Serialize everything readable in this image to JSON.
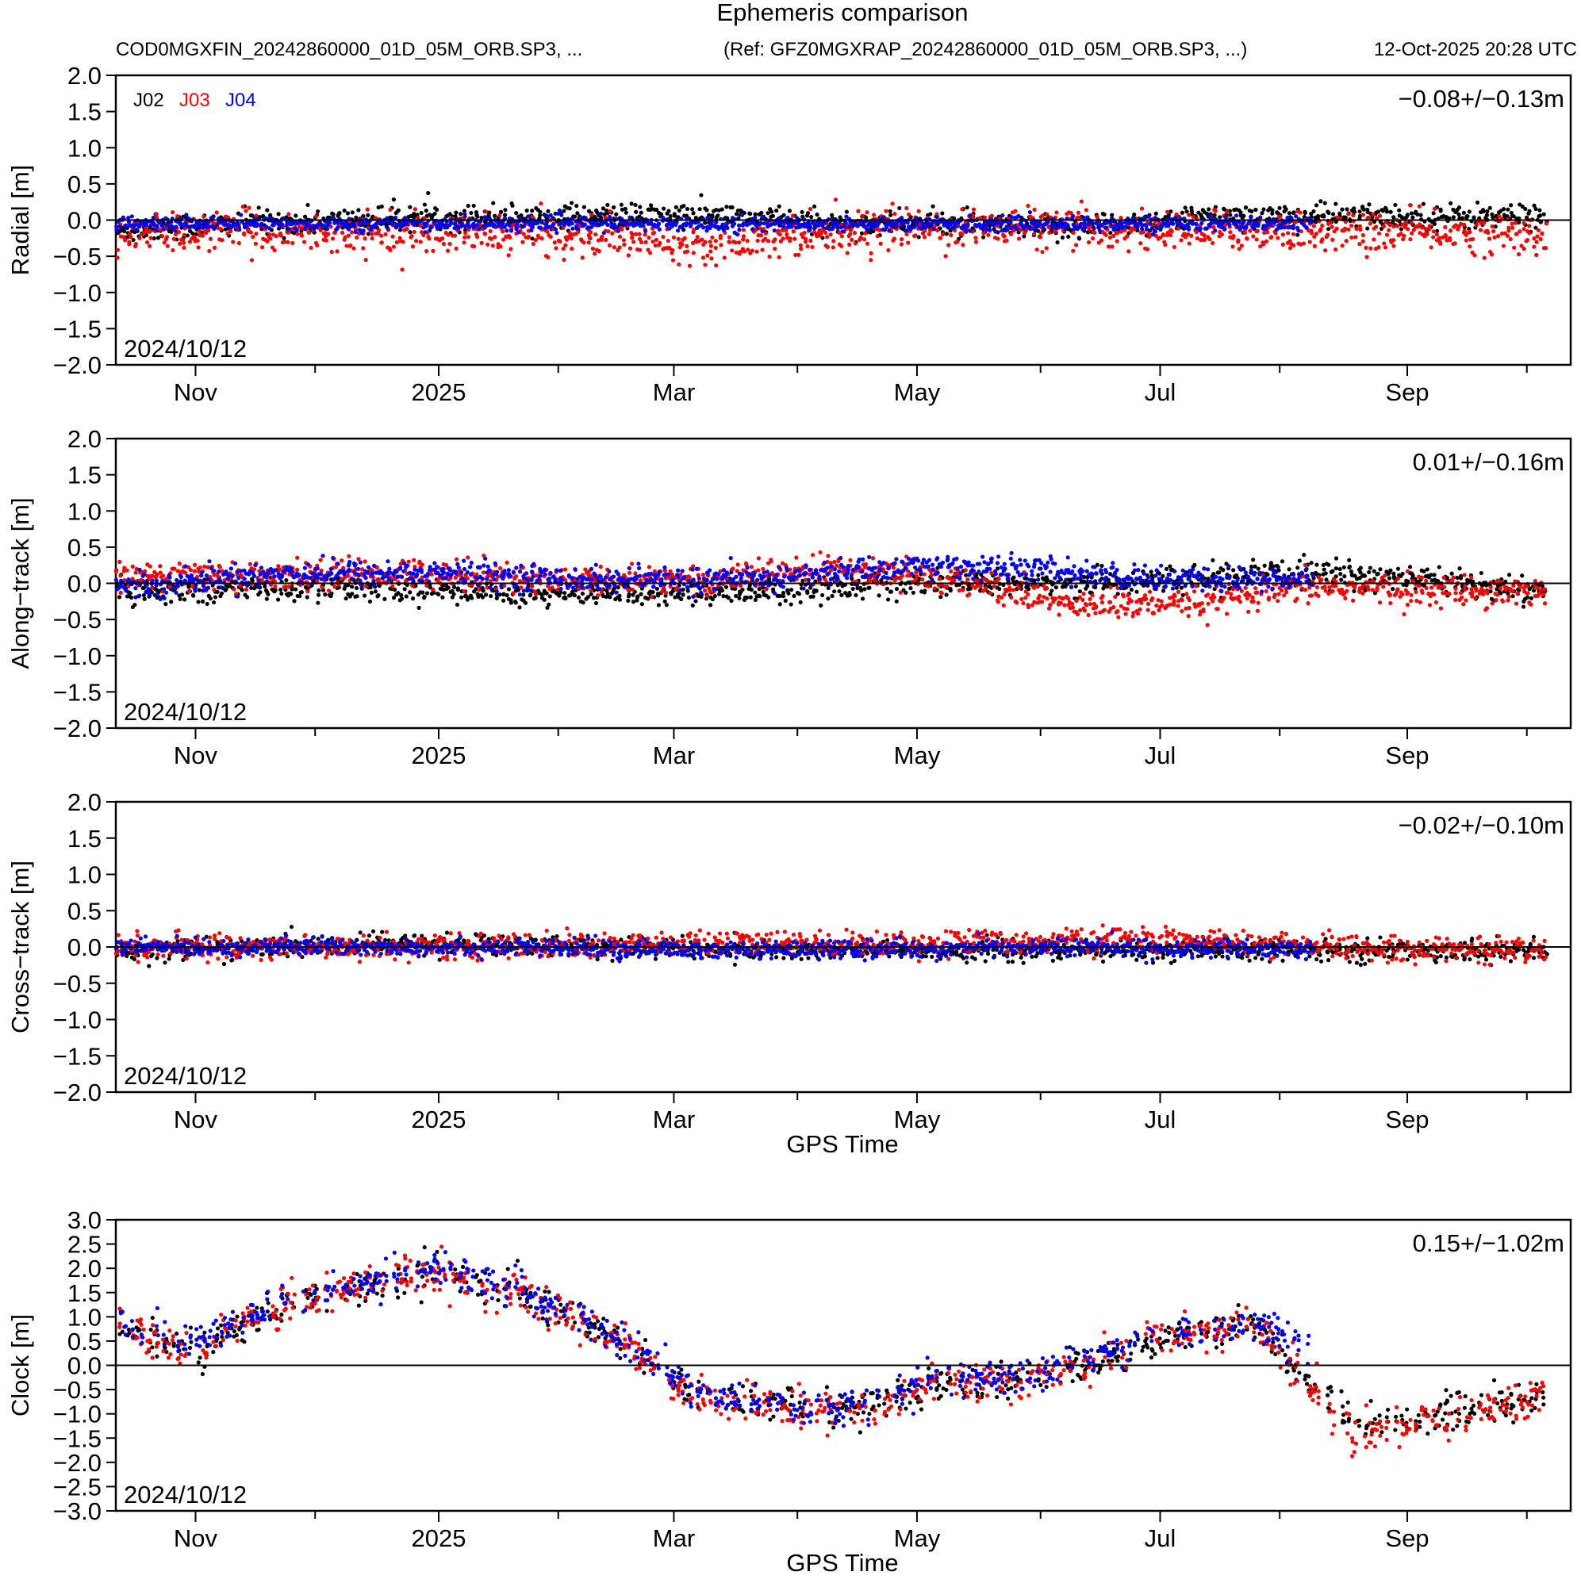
{
  "chart_data": {
    "type": "scatter",
    "title": "Ephemeris comparison",
    "subtitle_left": "COD0MGXFIN_20242860000_01D_05M_ORB.SP3, ...",
    "subtitle_ref": "(Ref: GFZ0MGXRAP_20242860000_01D_05M_ORB.SP3, ...)",
    "subtitle_date": "12-Oct-2025 20:28 UTC",
    "xlabel": "GPS Time",
    "start_label": "2024/10/12",
    "x_start": "2024-10-12",
    "x_end": "2025-10-11",
    "x_tick_labels": [
      "Nov",
      "2025",
      "Mar",
      "May",
      "Jul",
      "Sep"
    ],
    "x_tick_label_days": [
      20,
      81,
      140,
      201,
      262,
      324
    ],
    "x_minor_tick_days": [
      50,
      111,
      171,
      232,
      292,
      354
    ],
    "legend": [
      {
        "name": "J02",
        "color": "#000000"
      },
      {
        "name": "J03",
        "color": "#ff0000"
      },
      {
        "name": "J04",
        "color": "#0000ff"
      }
    ],
    "panels": [
      {
        "id": "radial",
        "ylabel": "Radial [m]",
        "ylim": [
          -2.0,
          2.0
        ],
        "yticks": [
          "−2.0",
          "−1.5",
          "−1.0",
          "−0.5",
          "0.0",
          "0.5",
          "1.0",
          "1.5",
          "2.0"
        ],
        "stat": "−0.08+/−0.13m",
        "series": [
          {
            "name": "J02",
            "color": "#000000",
            "day_range": [
              0,
              359
            ],
            "mean_knots": [
              [
                0,
                -0.15
              ],
              [
                10,
                -0.1
              ],
              [
                30,
                -0.05
              ],
              [
                60,
                0.0
              ],
              [
                90,
                0.05
              ],
              [
                120,
                0.05
              ],
              [
                150,
                0.05
              ],
              [
                180,
                -0.05
              ],
              [
                210,
                -0.05
              ],
              [
                230,
                -0.15
              ],
              [
                250,
                -0.05
              ],
              [
                280,
                0.05
              ],
              [
                310,
                0.05
              ],
              [
                359,
                0.05
              ]
            ],
            "spread": 0.15
          },
          {
            "name": "J03",
            "color": "#ff0000",
            "day_range": [
              0,
              359
            ],
            "mean_knots": [
              [
                0,
                -0.2
              ],
              [
                40,
                -0.15
              ],
              [
                80,
                -0.2
              ],
              [
                110,
                -0.2
              ],
              [
                145,
                -0.3
              ],
              [
                170,
                -0.2
              ],
              [
                200,
                -0.1
              ],
              [
                230,
                -0.1
              ],
              [
                260,
                -0.15
              ],
              [
                300,
                -0.15
              ],
              [
                359,
                -0.2
              ]
            ],
            "spread": 0.22
          },
          {
            "name": "J04",
            "color": "#0000ff",
            "day_range": [
              0,
              300
            ],
            "mean_knots": [
              [
                0,
                -0.05
              ],
              [
                60,
                -0.05
              ],
              [
                120,
                -0.05
              ],
              [
                180,
                -0.05
              ],
              [
                240,
                -0.05
              ],
              [
                300,
                -0.05
              ]
            ],
            "spread": 0.08
          }
        ]
      },
      {
        "id": "along-track",
        "ylabel": "Along−track [m]",
        "ylim": [
          -2.0,
          2.0
        ],
        "yticks": [
          "−2.0",
          "−1.5",
          "−1.0",
          "−0.5",
          "0.0",
          "0.5",
          "1.0",
          "1.5",
          "2.0"
        ],
        "stat": "0.01+/−0.16m",
        "series": [
          {
            "name": "J02",
            "color": "#000000",
            "day_range": [
              0,
              359
            ],
            "mean_knots": [
              [
                0,
                -0.1
              ],
              [
                60,
                -0.05
              ],
              [
                110,
                -0.15
              ],
              [
                160,
                -0.1
              ],
              [
                200,
                0.0
              ],
              [
                240,
                0.0
              ],
              [
                270,
                0.05
              ],
              [
                300,
                0.15
              ],
              [
                330,
                0.05
              ],
              [
                359,
                -0.15
              ]
            ],
            "spread": 0.15
          },
          {
            "name": "J03",
            "color": "#ff0000",
            "day_range": [
              0,
              359
            ],
            "mean_knots": [
              [
                0,
                0.1
              ],
              [
                40,
                0.1
              ],
              [
                80,
                0.15
              ],
              [
                110,
                0.05
              ],
              [
                150,
                0.05
              ],
              [
                180,
                0.2
              ],
              [
                210,
                0.05
              ],
              [
                240,
                -0.3
              ],
              [
                270,
                -0.3
              ],
              [
                300,
                -0.05
              ],
              [
                330,
                -0.1
              ],
              [
                359,
                -0.1
              ]
            ],
            "spread": 0.17
          },
          {
            "name": "J04",
            "color": "#0000ff",
            "day_range": [
              0,
              300
            ],
            "mean_knots": [
              [
                0,
                -0.05
              ],
              [
                40,
                0.15
              ],
              [
                80,
                0.15
              ],
              [
                120,
                0.05
              ],
              [
                160,
                0.05
              ],
              [
                200,
                0.25
              ],
              [
                230,
                0.2
              ],
              [
                260,
                0.05
              ],
              [
                300,
                0.05
              ]
            ],
            "spread": 0.14
          }
        ]
      },
      {
        "id": "cross-track",
        "ylabel": "Cross−track [m]",
        "ylim": [
          -2.0,
          2.0
        ],
        "yticks": [
          "−2.0",
          "−1.5",
          "−1.0",
          "−0.5",
          "0.0",
          "0.5",
          "1.0",
          "1.5",
          "2.0"
        ],
        "stat": "−0.02+/−0.10m",
        "series": [
          {
            "name": "J02",
            "color": "#000000",
            "day_range": [
              0,
              359
            ],
            "mean_knots": [
              [
                0,
                -0.05
              ],
              [
                80,
                0.05
              ],
              [
                160,
                -0.05
              ],
              [
                240,
                -0.05
              ],
              [
                300,
                -0.05
              ],
              [
                359,
                -0.05
              ]
            ],
            "spread": 0.12
          },
          {
            "name": "J03",
            "color": "#ff0000",
            "day_range": [
              0,
              359
            ],
            "mean_knots": [
              [
                0,
                0.0
              ],
              [
                80,
                0.0
              ],
              [
                160,
                0.05
              ],
              [
                200,
                0.05
              ],
              [
                260,
                0.1
              ],
              [
                300,
                0.0
              ],
              [
                359,
                -0.05
              ]
            ],
            "spread": 0.14
          },
          {
            "name": "J04",
            "color": "#0000ff",
            "day_range": [
              0,
              300
            ],
            "mean_knots": [
              [
                0,
                0.0
              ],
              [
                80,
                0.0
              ],
              [
                160,
                -0.05
              ],
              [
                240,
                0.0
              ],
              [
                300,
                -0.05
              ]
            ],
            "spread": 0.1
          }
        ]
      },
      {
        "id": "clock",
        "ylabel": "Clock [m]",
        "ylim": [
          -3.0,
          3.0
        ],
        "yticks": [
          "−3.0",
          "−2.5",
          "−2.0",
          "−1.5",
          "−1.0",
          "−0.5",
          "0.0",
          "0.5",
          "1.0",
          "1.5",
          "2.0",
          "2.5",
          "3.0"
        ],
        "stat": "0.15+/−1.02m",
        "series": [
          {
            "name": "J02",
            "color": "#000000",
            "day_range": [
              0,
              359
            ],
            "mean_knots": [
              [
                0,
                0.8
              ],
              [
                20,
                0.3
              ],
              [
                40,
                1.2
              ],
              [
                60,
                1.6
              ],
              [
                80,
                1.9
              ],
              [
                100,
                1.5
              ],
              [
                115,
                1.0
              ],
              [
                130,
                0.3
              ],
              [
                145,
                -0.6
              ],
              [
                165,
                -0.8
              ],
              [
                185,
                -0.9
              ],
              [
                205,
                -0.4
              ],
              [
                230,
                -0.3
              ],
              [
                260,
                0.5
              ],
              [
                285,
                0.9
              ],
              [
                295,
                0.0
              ],
              [
                310,
                -1.2
              ],
              [
                340,
                -1.0
              ],
              [
                359,
                -0.6
              ]
            ],
            "spread": 0.45
          },
          {
            "name": "J03",
            "color": "#ff0000",
            "day_range": [
              0,
              359
            ],
            "mean_knots": [
              [
                0,
                0.8
              ],
              [
                20,
                0.3
              ],
              [
                40,
                1.2
              ],
              [
                60,
                1.6
              ],
              [
                80,
                1.9
              ],
              [
                100,
                1.5
              ],
              [
                115,
                1.0
              ],
              [
                130,
                0.3
              ],
              [
                145,
                -0.7
              ],
              [
                165,
                -0.9
              ],
              [
                185,
                -1.0
              ],
              [
                205,
                -0.4
              ],
              [
                230,
                -0.3
              ],
              [
                260,
                0.5
              ],
              [
                285,
                0.9
              ],
              [
                295,
                0.0
              ],
              [
                310,
                -1.4
              ],
              [
                340,
                -1.0
              ],
              [
                359,
                -0.6
              ]
            ],
            "spread": 0.5
          },
          {
            "name": "J04",
            "color": "#0000ff",
            "day_range": [
              0,
              300
            ],
            "mean_knots": [
              [
                0,
                0.9
              ],
              [
                20,
                0.4
              ],
              [
                40,
                1.3
              ],
              [
                60,
                1.7
              ],
              [
                80,
                2.0
              ],
              [
                100,
                1.6
              ],
              [
                115,
                1.0
              ],
              [
                130,
                0.4
              ],
              [
                145,
                -0.6
              ],
              [
                165,
                -0.8
              ],
              [
                185,
                -0.9
              ],
              [
                205,
                -0.3
              ],
              [
                230,
                -0.2
              ],
              [
                260,
                0.6
              ],
              [
                285,
                0.9
              ],
              [
                300,
                0.3
              ]
            ],
            "spread": 0.45
          }
        ]
      }
    ]
  }
}
